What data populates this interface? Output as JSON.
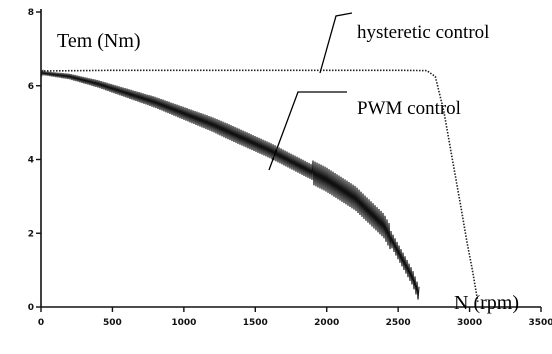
{
  "chart_data": {
    "type": "line",
    "ylabel": "Tem (Nm)",
    "xlabel": "N (rpm)",
    "xlim": [
      0,
      3500
    ],
    "ylim": [
      0,
      8
    ],
    "x_ticks": [
      0,
      500,
      1000,
      1500,
      2000,
      2500,
      3000,
      3500
    ],
    "y_ticks": [
      0,
      2,
      4,
      6,
      8
    ],
    "grid": false,
    "series": [
      {
        "name": "hysteretic control",
        "x": [
          0,
          500,
          1000,
          1500,
          2000,
          2500,
          2700,
          2760,
          2820,
          2880,
          2940,
          2980,
          3020,
          3060
        ],
        "y": [
          6.4,
          6.42,
          6.42,
          6.42,
          6.42,
          6.42,
          6.41,
          6.25,
          5.3,
          4.0,
          2.7,
          1.8,
          1.0,
          0.1
        ]
      },
      {
        "name": "PWM control",
        "x": [
          0,
          200,
          400,
          600,
          800,
          1000,
          1200,
          1400,
          1600,
          1800,
          2000,
          2200,
          2400,
          2500,
          2600,
          2650
        ],
        "y": [
          6.35,
          6.25,
          6.05,
          5.8,
          5.55,
          5.25,
          4.95,
          4.6,
          4.25,
          3.85,
          3.45,
          2.95,
          2.2,
          1.5,
          0.8,
          0.3
        ]
      }
    ]
  }
}
